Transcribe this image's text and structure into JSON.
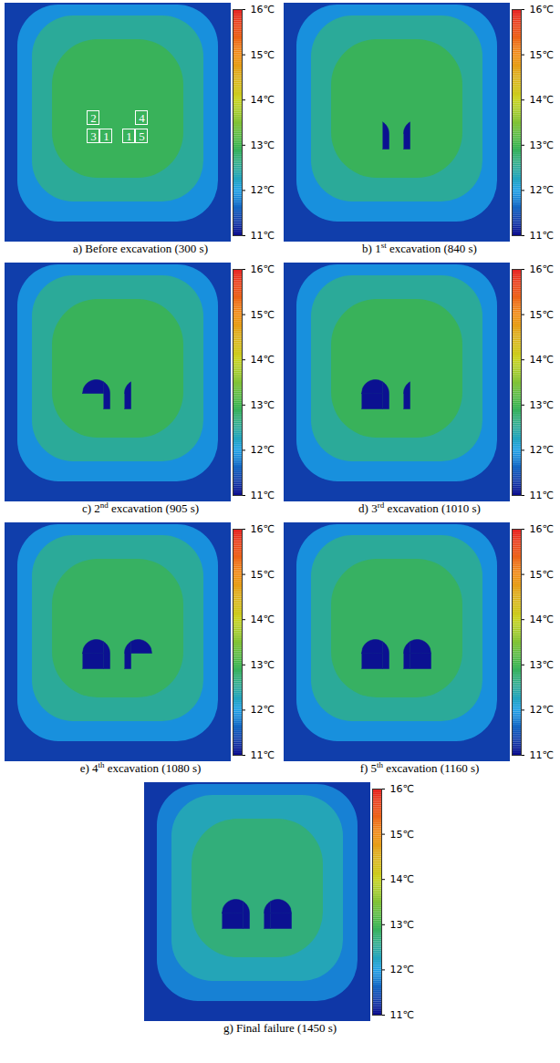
{
  "chart_data": {
    "type": "heatmap",
    "colorbar": {
      "range": [
        11,
        16
      ],
      "ticks": [
        {
          "value": 11,
          "label": "11℃"
        },
        {
          "value": 12,
          "label": "12℃"
        },
        {
          "value": 13,
          "label": "13℃"
        },
        {
          "value": 14,
          "label": "14℃"
        },
        {
          "value": 15,
          "label": "15℃"
        },
        {
          "value": 16,
          "label": "16℃"
        }
      ]
    },
    "tunnels": [
      {
        "sections": [
          "2",
          "3",
          "1"
        ]
      },
      {
        "sections": [
          "4",
          "1",
          "5"
        ]
      }
    ],
    "panels": [
      {
        "caption": "a) Before excavation (300 s)",
        "field": [
          11.35,
          11.9,
          12.5,
          12.9
        ],
        "cavity": 11.05,
        "excavated": [
          [],
          []
        ],
        "data_labels": true
      },
      {
        "caption": "b) 1st excavation (840 s)",
        "field": [
          11.35,
          11.9,
          12.5,
          12.9
        ],
        "cavity": 11.05,
        "excavated": [
          [
            "1"
          ],
          [
            "1"
          ]
        ],
        "data_labels": false
      },
      {
        "caption": "c) 2nd excavation (905 s)",
        "field": [
          11.35,
          11.9,
          12.5,
          12.9
        ],
        "cavity": 11.05,
        "excavated": [
          [
            "2",
            "1"
          ],
          [
            "1"
          ]
        ],
        "data_labels": false
      },
      {
        "caption": "d) 3rd excavation (1010 s)",
        "field": [
          11.35,
          11.9,
          12.5,
          12.9
        ],
        "cavity": 11.05,
        "excavated": [
          [
            "2",
            "3",
            "1"
          ],
          [
            "1"
          ]
        ],
        "data_labels": false
      },
      {
        "caption": "e) 4th excavation (1080 s)",
        "field": [
          11.35,
          11.9,
          12.5,
          12.85
        ],
        "cavity": 11.05,
        "excavated": [
          [
            "2",
            "3",
            "1"
          ],
          [
            "4",
            "1"
          ]
        ],
        "data_labels": false
      },
      {
        "caption": "f) 5th excavation (1160 s)",
        "field": [
          11.35,
          11.9,
          12.5,
          12.85
        ],
        "cavity": 11.05,
        "excavated": [
          [
            "2",
            "3",
            "1"
          ],
          [
            "4",
            "1",
            "5"
          ]
        ],
        "data_labels": false
      },
      {
        "caption": "g) Final failure (1450 s)",
        "field": [
          11.3,
          11.8,
          12.3,
          12.7
        ],
        "cavity": 11.05,
        "excavated": [
          [
            "2",
            "3",
            "1"
          ],
          [
            "4",
            "1",
            "5"
          ]
        ],
        "data_labels": false
      }
    ]
  }
}
